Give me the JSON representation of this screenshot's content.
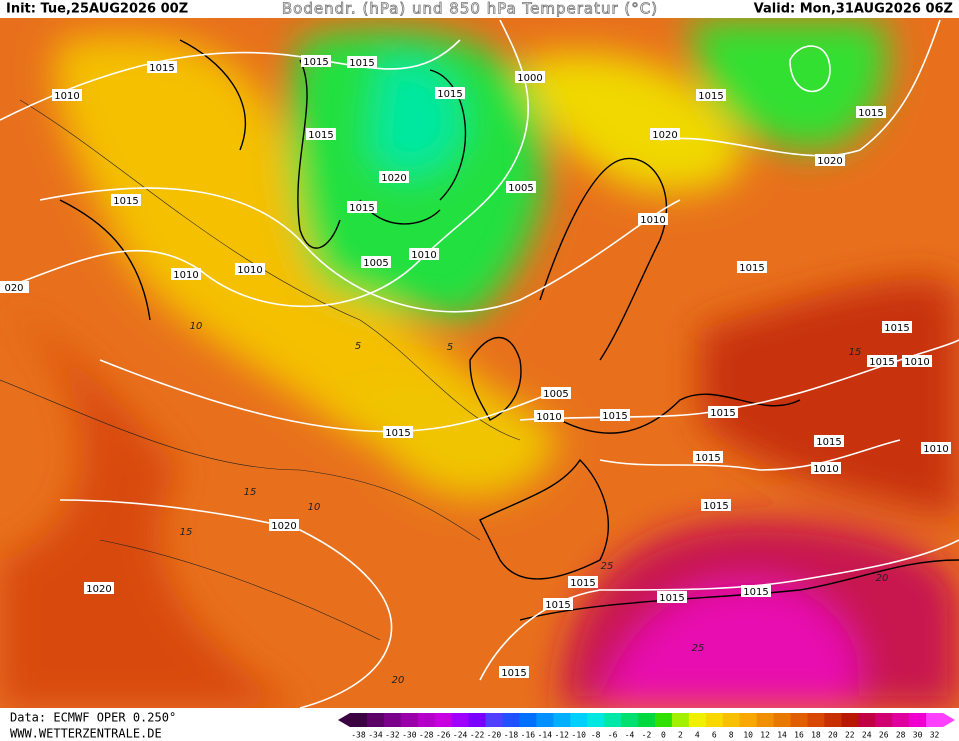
{
  "header": {
    "init": "Init: Tue,25AUG2026 00Z",
    "title": "Bodendr. (hPa) und 850 hPa Temperatur (°C)",
    "valid": "Valid: Mon,31AUG2026 06Z"
  },
  "footer": {
    "source": "Data: ECMWF OPER 0.250°",
    "website": "WWW.WETTERZENTRALE.DE"
  },
  "colorbar": {
    "labels": [
      -38,
      -34,
      -32,
      -30,
      -28,
      -26,
      -24,
      -22,
      -20,
      -18,
      -16,
      -14,
      -12,
      -10,
      -8,
      -6,
      -4,
      -2,
      0,
      2,
      4,
      6,
      8,
      10,
      12,
      14,
      16,
      18,
      20,
      22,
      24,
      26,
      28,
      30,
      32
    ],
    "colors": [
      "#3a0040",
      "#5a0066",
      "#7a008a",
      "#9a00aa",
      "#b400c8",
      "#c800e0",
      "#a000ff",
      "#7a00ff",
      "#5040ff",
      "#2050ff",
      "#0070ff",
      "#0090ff",
      "#00b0ff",
      "#00d0ff",
      "#00e8e0",
      "#00e8a8",
      "#00e070",
      "#00d840",
      "#30e000",
      "#a0f000",
      "#f0f000",
      "#f8d800",
      "#f8c000",
      "#f8a800",
      "#f09000",
      "#e87800",
      "#e06000",
      "#d84800",
      "#c83000",
      "#b81800",
      "#c00040",
      "#d00070",
      "#e000a0",
      "#f000d0",
      "#ff40ff"
    ]
  },
  "isobar_labels": [
    "1015",
    "1010",
    "1015",
    "1015",
    "1015",
    "1000",
    "1015",
    "1015",
    "1020",
    "1020",
    "1015",
    "1020",
    "1015",
    "1015",
    "1005",
    "1010",
    "1010",
    "1010",
    "1005",
    "1010",
    "1015",
    "020",
    "1015",
    "1015",
    "1010",
    "1005",
    "1010",
    "1015",
    "1015",
    "1015",
    "1015",
    "1015",
    "1010",
    "1010",
    "1015",
    "1020",
    "1015",
    "1015",
    "1015",
    "1015",
    "1020",
    "1015"
  ],
  "temperature_labels": [
    "5",
    "10",
    "15",
    "10",
    "15",
    "20",
    "25",
    "25",
    "20",
    "5",
    "15"
  ]
}
